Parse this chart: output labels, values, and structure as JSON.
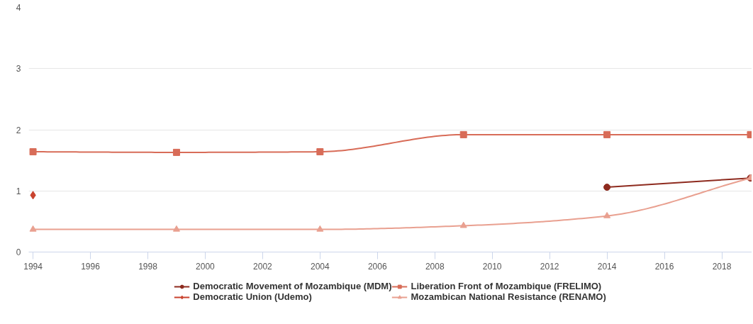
{
  "chart_data": {
    "type": "line",
    "x": [
      1994,
      1999,
      2004,
      2009,
      2014,
      2019
    ],
    "series": [
      {
        "name": "Democratic Movement of Mozambique (MDM)",
        "color": "#8e2b1f",
        "marker": "circle",
        "values": [
          null,
          null,
          null,
          null,
          1.06,
          1.21
        ]
      },
      {
        "name": "Democratic Union (Udemo)",
        "color": "#c9432e",
        "marker": "diamond",
        "values": [
          0.93,
          null,
          null,
          null,
          null,
          null
        ]
      },
      {
        "name": "Liberation Front of Mozambique (FRELIMO)",
        "color": "#d86c58",
        "marker": "square",
        "values": [
          1.64,
          1.63,
          1.64,
          1.92,
          1.92,
          1.92
        ]
      },
      {
        "name": "Mozambican National Resistance (RENAMO)",
        "color": "#e9a090",
        "marker": "triangle",
        "values": [
          0.37,
          0.37,
          0.37,
          0.43,
          0.59,
          1.21
        ]
      }
    ],
    "xlim": [
      1993.85,
      2019.05
    ],
    "xticks": [
      1994,
      1996,
      1998,
      2000,
      2002,
      2004,
      2006,
      2008,
      2010,
      2012,
      2014,
      2016,
      2018
    ],
    "ylim": [
      0,
      4
    ],
    "yticks": [
      0,
      1,
      2,
      3,
      4
    ],
    "grid": "y",
    "legend": "bottom"
  }
}
